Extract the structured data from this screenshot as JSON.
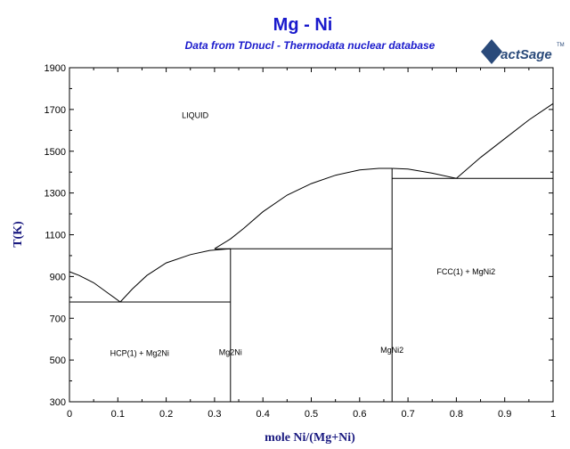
{
  "chart_data": {
    "type": "line",
    "title": "Mg - Ni",
    "subtitle": "Data from TDnucl - Thermodata nuclear database",
    "logo_text": "FactSage",
    "logo_tm": "TM",
    "xlabel": "mole Ni/(Mg+Ni)",
    "ylabel": "T(K)",
    "xlim": [
      0,
      1
    ],
    "ylim": [
      300,
      1900
    ],
    "xticks": [
      0,
      0.1,
      0.2,
      0.3,
      0.4,
      0.5,
      0.6,
      0.7,
      0.8,
      0.9,
      1
    ],
    "xtick_labels": [
      "0",
      "0.1",
      "0.2",
      "0.3",
      "0.4",
      "0.5",
      "0.6",
      "0.7",
      "0.8",
      "0.9",
      "1"
    ],
    "yticks": [
      300,
      500,
      700,
      900,
      1100,
      1300,
      1500,
      1700,
      1900
    ],
    "ytick_labels": [
      "300",
      "500",
      "700",
      "900",
      "1100",
      "1300",
      "1500",
      "1700",
      "1900"
    ],
    "grid": false,
    "series": [
      {
        "x": [
          0,
          0.02,
          0.05,
          0.08,
          0.105
        ],
        "y": [
          923,
          905,
          870,
          820,
          778
        ]
      },
      {
        "x": [
          0.105,
          0.13,
          0.16,
          0.2,
          0.25,
          0.29,
          0.333
        ],
        "y": [
          778,
          840,
          905,
          965,
          1005,
          1025,
          1033
        ]
      },
      {
        "x": [
          0.3,
          0.333,
          0.36,
          0.4,
          0.45,
          0.5,
          0.55,
          0.6,
          0.64,
          0.667
        ],
        "y": [
          1033,
          1080,
          1130,
          1210,
          1290,
          1345,
          1385,
          1410,
          1418,
          1418
        ]
      },
      {
        "x": [
          0.667,
          0.7,
          0.75,
          0.8
        ],
        "y": [
          1418,
          1415,
          1395,
          1370
        ]
      },
      {
        "x": [
          0.8,
          0.85,
          0.9,
          0.95,
          1.0
        ],
        "y": [
          1370,
          1470,
          1560,
          1650,
          1728
        ]
      },
      {
        "x": [
          0,
          0.333
        ],
        "y": [
          778,
          778
        ]
      },
      {
        "x": [
          0.3,
          0.667
        ],
        "y": [
          1033,
          1033
        ]
      },
      {
        "x": [
          0.667,
          1.0
        ],
        "y": [
          1370,
          1370
        ]
      },
      {
        "x": [
          0.333,
          0.333
        ],
        "y": [
          300,
          1033
        ]
      },
      {
        "x": [
          0.667,
          0.667
        ],
        "y": [
          300,
          1418
        ]
      }
    ],
    "annotations": [
      {
        "text": "LIQUID",
        "x": 0.26,
        "y": 1660
      },
      {
        "text": "HCP(1) + Mg2Ni",
        "x": 0.145,
        "y": 520
      },
      {
        "text": "Mg2Ni",
        "x": 0.333,
        "y": 525
      },
      {
        "text": "MgNi2",
        "x": 0.667,
        "y": 535
      },
      {
        "text": "FCC(1) + MgNi2",
        "x": 0.82,
        "y": 910
      }
    ]
  }
}
